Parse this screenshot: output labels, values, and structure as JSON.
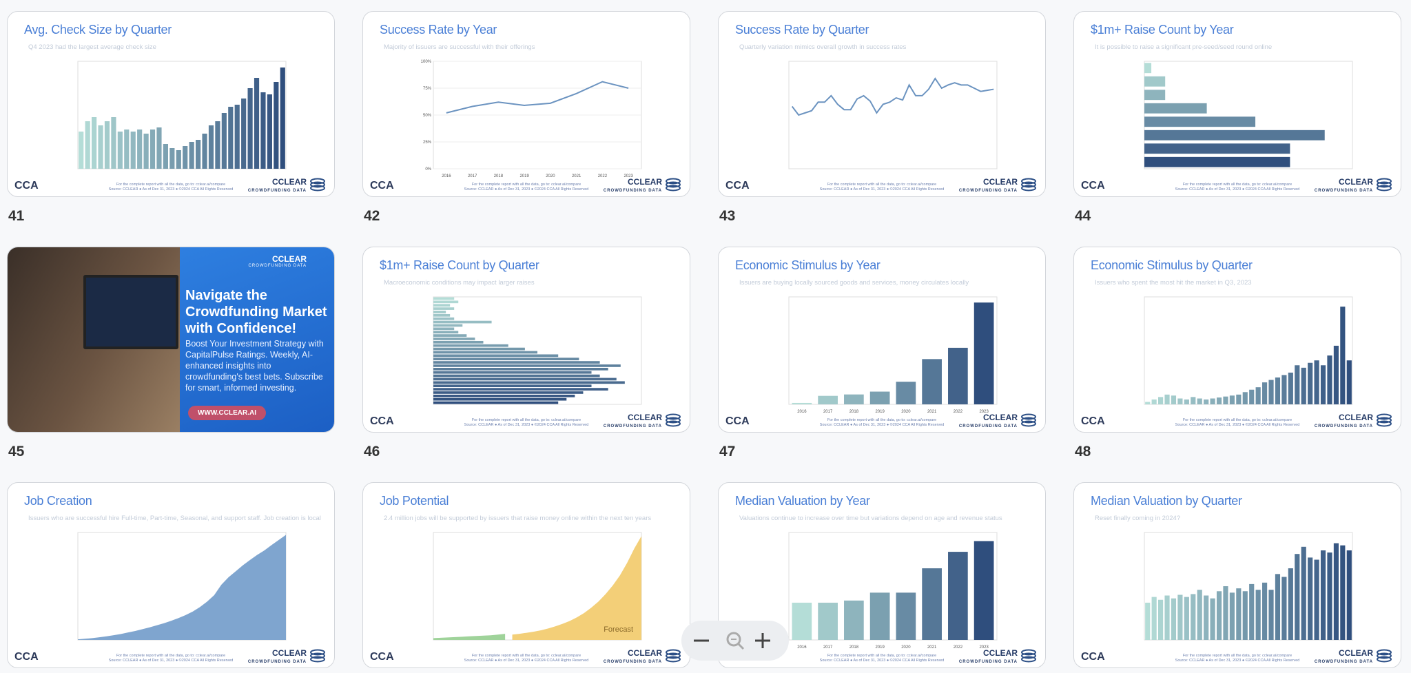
{
  "footer": {
    "left_logo": "CCA",
    "note": "For the complete report with all the data, go to: cclear.ai/compare",
    "source": "Source: CCLEAR ● As of Dec 31, 2023 ● ©2024 CCA All Rights Reserved",
    "right_logo": "CCLEAR",
    "right_logo_sub": "CROWDFUNDING DATA"
  },
  "slides": [
    {
      "number": "41",
      "title": "Avg. Check Size by Quarter",
      "subtitle": "Q4 2023 had the largest average check size",
      "chart": {
        "type": "bar",
        "colors": [
          "#b4ddd7",
          "#2f4e7d"
        ],
        "ylim": [
          0,
          2600
        ],
        "values": [
          900,
          1150,
          1250,
          1050,
          1150,
          1250,
          900,
          950,
          900,
          950,
          850,
          950,
          1000,
          600,
          500,
          450,
          550,
          650,
          700,
          850,
          1050,
          1150,
          1350,
          1500,
          1550,
          1700,
          1950,
          2200,
          1850,
          1800,
          2100,
          2450
        ]
      }
    },
    {
      "number": "42",
      "title": "Success Rate by Year",
      "subtitle": "Majority of issuers are successful with their offerings",
      "chart": {
        "type": "line",
        "color": "#6b93c0",
        "ylim": [
          0,
          100
        ],
        "yticks": [
          {
            "value": 0,
            "label": "0%"
          },
          {
            "value": 25,
            "label": "25%"
          },
          {
            "value": 50,
            "label": "50%"
          },
          {
            "value": 75,
            "label": "75%"
          },
          {
            "value": 100,
            "label": "100%"
          }
        ],
        "categories": [
          "2016",
          "2017",
          "2018",
          "2019",
          "2020",
          "2021",
          "2022",
          "2023"
        ],
        "values": [
          52,
          58,
          62,
          59,
          61,
          70,
          81,
          75
        ]
      }
    },
    {
      "number": "43",
      "title": "Success Rate by Quarter",
      "subtitle": "Quarterly variation mimics overall growth in success rates",
      "chart": {
        "type": "line",
        "color": "#6b93c0",
        "ylim": [
          0,
          100
        ],
        "values": [
          58,
          50,
          52,
          54,
          62,
          62,
          68,
          60,
          55,
          55,
          65,
          68,
          63,
          52,
          60,
          62,
          66,
          64,
          78,
          68,
          68,
          74,
          84,
          75,
          78,
          80,
          78,
          78,
          75,
          72,
          73,
          74
        ]
      }
    },
    {
      "number": "44",
      "title": "$1m+ Raise Count by Year",
      "subtitle": "It is possible to raise a significant pre-seed/seed round online",
      "chart": {
        "type": "hbar",
        "colors": [
          "#b4ddd7",
          "#2f4e7d"
        ],
        "xlim": [
          0,
          30
        ],
        "values": [
          1,
          3,
          3,
          9,
          16,
          26,
          21,
          21
        ]
      }
    },
    {
      "number": "45",
      "ad": {
        "brand": "CCLEAR",
        "brand_sub": "CROWDFUNDING DATA",
        "headline": "Navigate the Crowdfunding Market with Confidence!",
        "body": "Boost Your Investment Strategy with CapitalPulse Ratings. Weekly, AI-enhanced insights into crowdfunding's best bets. Subscribe for smart, informed investing.",
        "button": "WWW.CCLEAR.AI"
      }
    },
    {
      "number": "46",
      "title": "$1m+ Raise Count by Quarter",
      "subtitle": "Macroeconomic conditions may impact larger raises",
      "chart": {
        "type": "hbar",
        "colors": [
          "#b4ddd7",
          "#2f4e7d"
        ],
        "xlim": [
          0,
          50
        ],
        "values": [
          5,
          6,
          4,
          5,
          3,
          4,
          5,
          14,
          7,
          5,
          6,
          8,
          10,
          12,
          18,
          22,
          25,
          30,
          35,
          40,
          45,
          42,
          38,
          40,
          44,
          46,
          38,
          42,
          36,
          34,
          32,
          30
        ]
      }
    },
    {
      "number": "47",
      "title": "Economic Stimulus by Year",
      "subtitle": "Issuers are buying locally sourced goods and services, money circulates locally",
      "chart": {
        "type": "bar",
        "colors": [
          "#b4ddd7",
          "#2f4e7d"
        ],
        "ylim": [
          0,
          3.8
        ],
        "categories": [
          "2016",
          "2017",
          "2018",
          "2019",
          "2020",
          "2021",
          "2022",
          "2023"
        ],
        "values": [
          0.05,
          0.3,
          0.35,
          0.45,
          0.8,
          1.6,
          2.0,
          3.6
        ]
      }
    },
    {
      "number": "48",
      "title": "Economic Stimulus by Quarter",
      "subtitle": "Issuers who spent the most hit the market in Q3, 2023",
      "chart": {
        "type": "bar",
        "colors": [
          "#b4ddd7",
          "#2f4e7d"
        ],
        "ylim": [
          0,
          2.2
        ],
        "values": [
          0.05,
          0.1,
          0.15,
          0.2,
          0.18,
          0.12,
          0.1,
          0.15,
          0.12,
          0.1,
          0.12,
          0.14,
          0.16,
          0.18,
          0.2,
          0.25,
          0.3,
          0.35,
          0.45,
          0.5,
          0.55,
          0.6,
          0.65,
          0.8,
          0.75,
          0.85,
          0.9,
          0.8,
          1.0,
          1.2,
          2.0,
          0.9
        ]
      }
    },
    {
      "number": "49",
      "title": "Job Creation",
      "subtitle": "Issuers who are successful hire Full-time, Part-time, Seasonal, and support staff. Job creation is local",
      "chart": {
        "type": "area",
        "ylim": [
          0,
          360
        ],
        "series": [
          {
            "color": "#7fa5cf",
            "values": [
              2,
              4,
              6,
              9,
              12,
              16,
              20,
              25,
              30,
              36,
              42,
              49,
              56,
              64,
              73,
              83,
              95,
              110,
              128,
              150,
              185,
              210,
              230,
              250,
              268,
              285,
              300,
              318,
              335,
              352
            ]
          }
        ]
      }
    },
    {
      "number": "50",
      "title": "Job Potential",
      "subtitle": "2.4 million jobs will be supported by issuers that raise money online within the next ten years",
      "chart": {
        "type": "area",
        "ylim": [
          0,
          3
        ],
        "annotation": "Forecast",
        "series": [
          {
            "color": "#9fd39a",
            "values": [
              0.05,
              0.06,
              0.07,
              0.08,
              0.09,
              0.1,
              0.11,
              0.12,
              0.13,
              0.15,
              0.17,
              null,
              null,
              null,
              null,
              null,
              null,
              null,
              null,
              null,
              null,
              null,
              null,
              null,
              null,
              null,
              null,
              null,
              null,
              null
            ]
          },
          {
            "color": "#f3cf78",
            "values": [
              null,
              null,
              null,
              null,
              null,
              null,
              null,
              null,
              null,
              null,
              null,
              0.15,
              0.17,
              0.2,
              0.23,
              0.27,
              0.32,
              0.38,
              0.45,
              0.53,
              0.63,
              0.75,
              0.9,
              1.07,
              1.28,
              1.52,
              1.8,
              2.15,
              2.55,
              2.9
            ]
          }
        ]
      }
    },
    {
      "number": "51",
      "title": "Median Valuation by Year",
      "subtitle": "Valuations continue to increase over time but variations depend on age and revenue status",
      "chart": {
        "type": "bar",
        "colors": [
          "#b4ddd7",
          "#2f4e7d"
        ],
        "ylim": [
          0,
          15
        ],
        "categories": [
          "2016",
          "2017",
          "2018",
          "2019",
          "2020",
          "2021",
          "2022",
          "2023"
        ],
        "values": [
          5.2,
          5.2,
          5.5,
          6.6,
          6.6,
          10,
          12.3,
          13.8
        ]
      }
    },
    {
      "number": "52",
      "title": "Median Valuation by Quarter",
      "subtitle": "Reset finally coming in 2024?",
      "chart": {
        "type": "bar",
        "colors": [
          "#b4ddd7",
          "#2f4e7d"
        ],
        "ylim": [
          0,
          15
        ],
        "values": [
          5.2,
          6,
          5.6,
          6.2,
          5.8,
          6.3,
          6,
          6.4,
          7,
          6.2,
          5.8,
          6.8,
          7.5,
          6.6,
          7.2,
          6.8,
          7.8,
          7,
          8,
          7,
          9.2,
          8.8,
          10,
          12,
          13,
          11.5,
          11.2,
          12.5,
          12.2,
          13.5,
          13.2,
          12.5
        ]
      }
    }
  ]
}
